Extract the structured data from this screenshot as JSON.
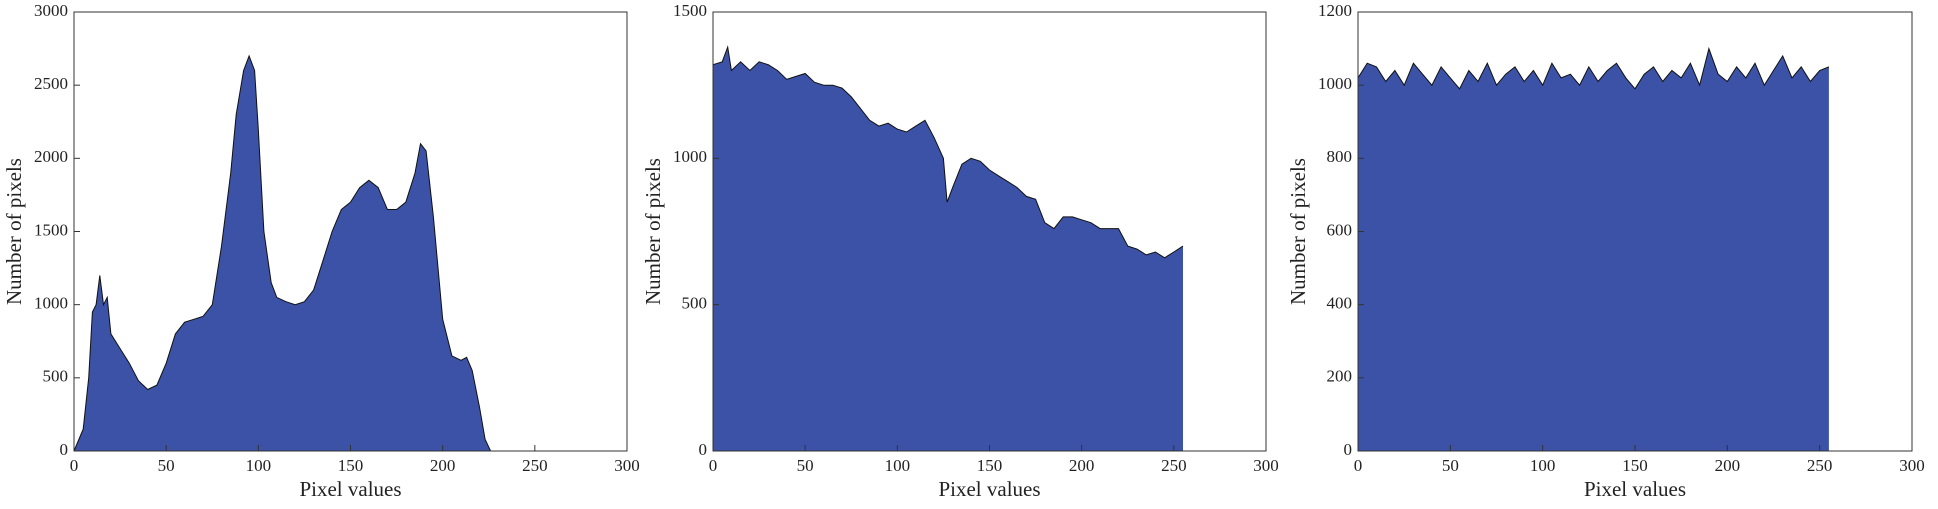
{
  "chart_data": [
    {
      "type": "area",
      "xlabel": "Pixel values",
      "ylabel": "Number of pixels",
      "color": "#3b52a6",
      "x": [
        0,
        5,
        8,
        10,
        12,
        14,
        16,
        18,
        20,
        25,
        30,
        35,
        40,
        45,
        50,
        55,
        60,
        65,
        70,
        75,
        80,
        85,
        88,
        92,
        95,
        98,
        100,
        103,
        107,
        110,
        115,
        120,
        125,
        130,
        135,
        140,
        145,
        150,
        155,
        160,
        165,
        170,
        175,
        180,
        185,
        188,
        191,
        195,
        200,
        205,
        210,
        213,
        216,
        220,
        223,
        226,
        255
      ],
      "values": [
        0,
        150,
        500,
        950,
        1000,
        1200,
        1000,
        1050,
        800,
        700,
        600,
        480,
        420,
        450,
        600,
        800,
        880,
        900,
        920,
        1000,
        1400,
        1900,
        2300,
        2600,
        2700,
        2600,
        2200,
        1500,
        1150,
        1050,
        1020,
        1000,
        1020,
        1100,
        1300,
        1500,
        1650,
        1700,
        1800,
        1850,
        1800,
        1650,
        1650,
        1700,
        1900,
        2100,
        2050,
        1600,
        900,
        650,
        620,
        640,
        550,
        300,
        80,
        0,
        0
      ],
      "xlim": [
        0,
        300
      ],
      "xticks": [
        0,
        50,
        100,
        150,
        200,
        250,
        300
      ],
      "ylim": [
        0,
        3000
      ],
      "yticks": [
        0,
        500,
        1000,
        1500,
        2000,
        2500,
        3000
      ]
    },
    {
      "type": "area",
      "xlabel": "Pixel values",
      "ylabel": "Number of pixels",
      "color": "#3b52a6",
      "x": [
        0,
        5,
        8,
        10,
        15,
        20,
        25,
        30,
        35,
        40,
        45,
        50,
        55,
        60,
        65,
        70,
        75,
        80,
        85,
        90,
        95,
        100,
        105,
        110,
        115,
        120,
        125,
        127,
        130,
        135,
        140,
        145,
        150,
        155,
        160,
        165,
        170,
        175,
        180,
        185,
        190,
        195,
        200,
        205,
        210,
        215,
        220,
        225,
        230,
        235,
        240,
        245,
        250,
        255
      ],
      "values": [
        1320,
        1330,
        1380,
        1300,
        1330,
        1300,
        1330,
        1320,
        1300,
        1270,
        1280,
        1290,
        1260,
        1250,
        1250,
        1240,
        1210,
        1170,
        1130,
        1110,
        1120,
        1100,
        1090,
        1110,
        1130,
        1070,
        1000,
        850,
        900,
        980,
        1000,
        990,
        960,
        940,
        920,
        900,
        870,
        860,
        780,
        760,
        800,
        800,
        790,
        780,
        760,
        760,
        760,
        700,
        690,
        670,
        680,
        660,
        680,
        700
      ],
      "xlim": [
        0,
        300
      ],
      "xticks": [
        0,
        50,
        100,
        150,
        200,
        250,
        300
      ],
      "ylim": [
        0,
        1500
      ],
      "yticks": [
        0,
        500,
        1000,
        1500
      ]
    },
    {
      "type": "area",
      "xlabel": "Pixel values",
      "ylabel": "Number of pixels",
      "color": "#3b52a6",
      "x": [
        0,
        5,
        10,
        15,
        20,
        25,
        30,
        35,
        40,
        45,
        50,
        55,
        60,
        65,
        70,
        75,
        80,
        85,
        90,
        95,
        100,
        105,
        110,
        115,
        120,
        125,
        130,
        135,
        140,
        145,
        150,
        155,
        160,
        165,
        170,
        175,
        180,
        185,
        190,
        195,
        200,
        205,
        210,
        215,
        220,
        225,
        230,
        235,
        240,
        245,
        250,
        255
      ],
      "values": [
        1020,
        1060,
        1050,
        1010,
        1040,
        1000,
        1060,
        1030,
        1000,
        1050,
        1020,
        990,
        1040,
        1010,
        1060,
        1000,
        1030,
        1050,
        1010,
        1040,
        1000,
        1060,
        1020,
        1030,
        1000,
        1050,
        1010,
        1040,
        1060,
        1020,
        990,
        1030,
        1050,
        1010,
        1040,
        1020,
        1060,
        1000,
        1100,
        1030,
        1010,
        1050,
        1020,
        1060,
        1000,
        1040,
        1080,
        1020,
        1050,
        1010,
        1040,
        1050
      ],
      "xlim": [
        0,
        300
      ],
      "xticks": [
        0,
        50,
        100,
        150,
        200,
        250,
        300
      ],
      "ylim": [
        0,
        1200
      ],
      "yticks": [
        0,
        200,
        400,
        600,
        800,
        1000,
        1200
      ]
    }
  ]
}
